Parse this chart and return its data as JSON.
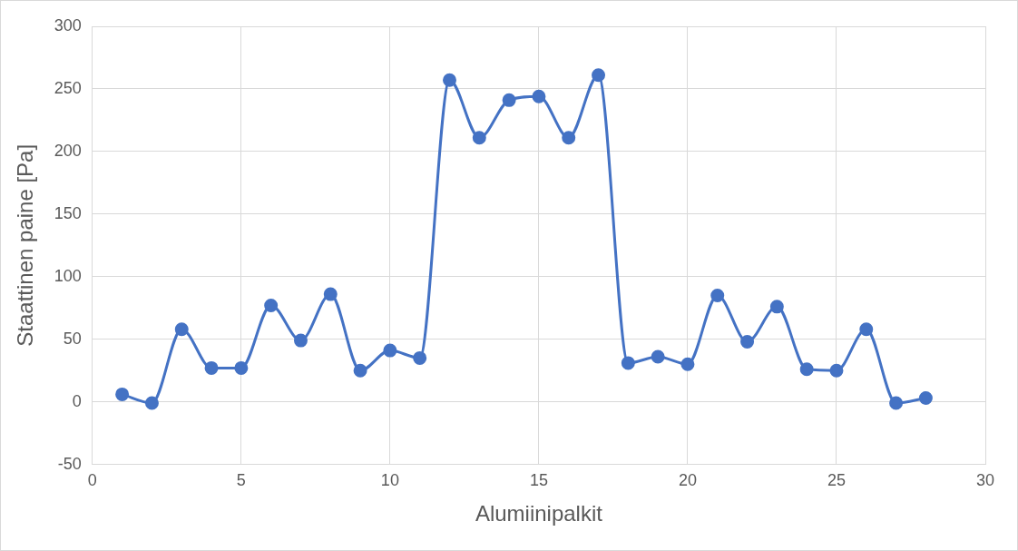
{
  "chart_data": {
    "type": "line",
    "xlabel": "Alumiinipalkit",
    "ylabel": "Staattinen paine [Pa]",
    "x": [
      1,
      2,
      3,
      4,
      5,
      6,
      7,
      8,
      9,
      10,
      11,
      12,
      13,
      14,
      15,
      16,
      17,
      18,
      19,
      20,
      21,
      22,
      23,
      24,
      25,
      26,
      27,
      28
    ],
    "series": [
      {
        "color": "#4472c4",
        "values": [
          6,
          -1,
          58,
          27,
          27,
          77,
          49,
          86,
          25,
          41,
          35,
          257,
          211,
          241,
          244,
          211,
          261,
          31,
          36,
          30,
          85,
          48,
          76,
          26,
          25,
          58,
          -1,
          3
        ]
      }
    ],
    "xlim": [
      0,
      30
    ],
    "xticks": [
      0,
      5,
      10,
      15,
      20,
      25,
      30
    ],
    "ylim": [
      -50,
      300
    ],
    "yticks": [
      -50,
      0,
      50,
      100,
      150,
      200,
      250,
      300
    ],
    "grid": true,
    "marker": "circle",
    "legend": false
  }
}
